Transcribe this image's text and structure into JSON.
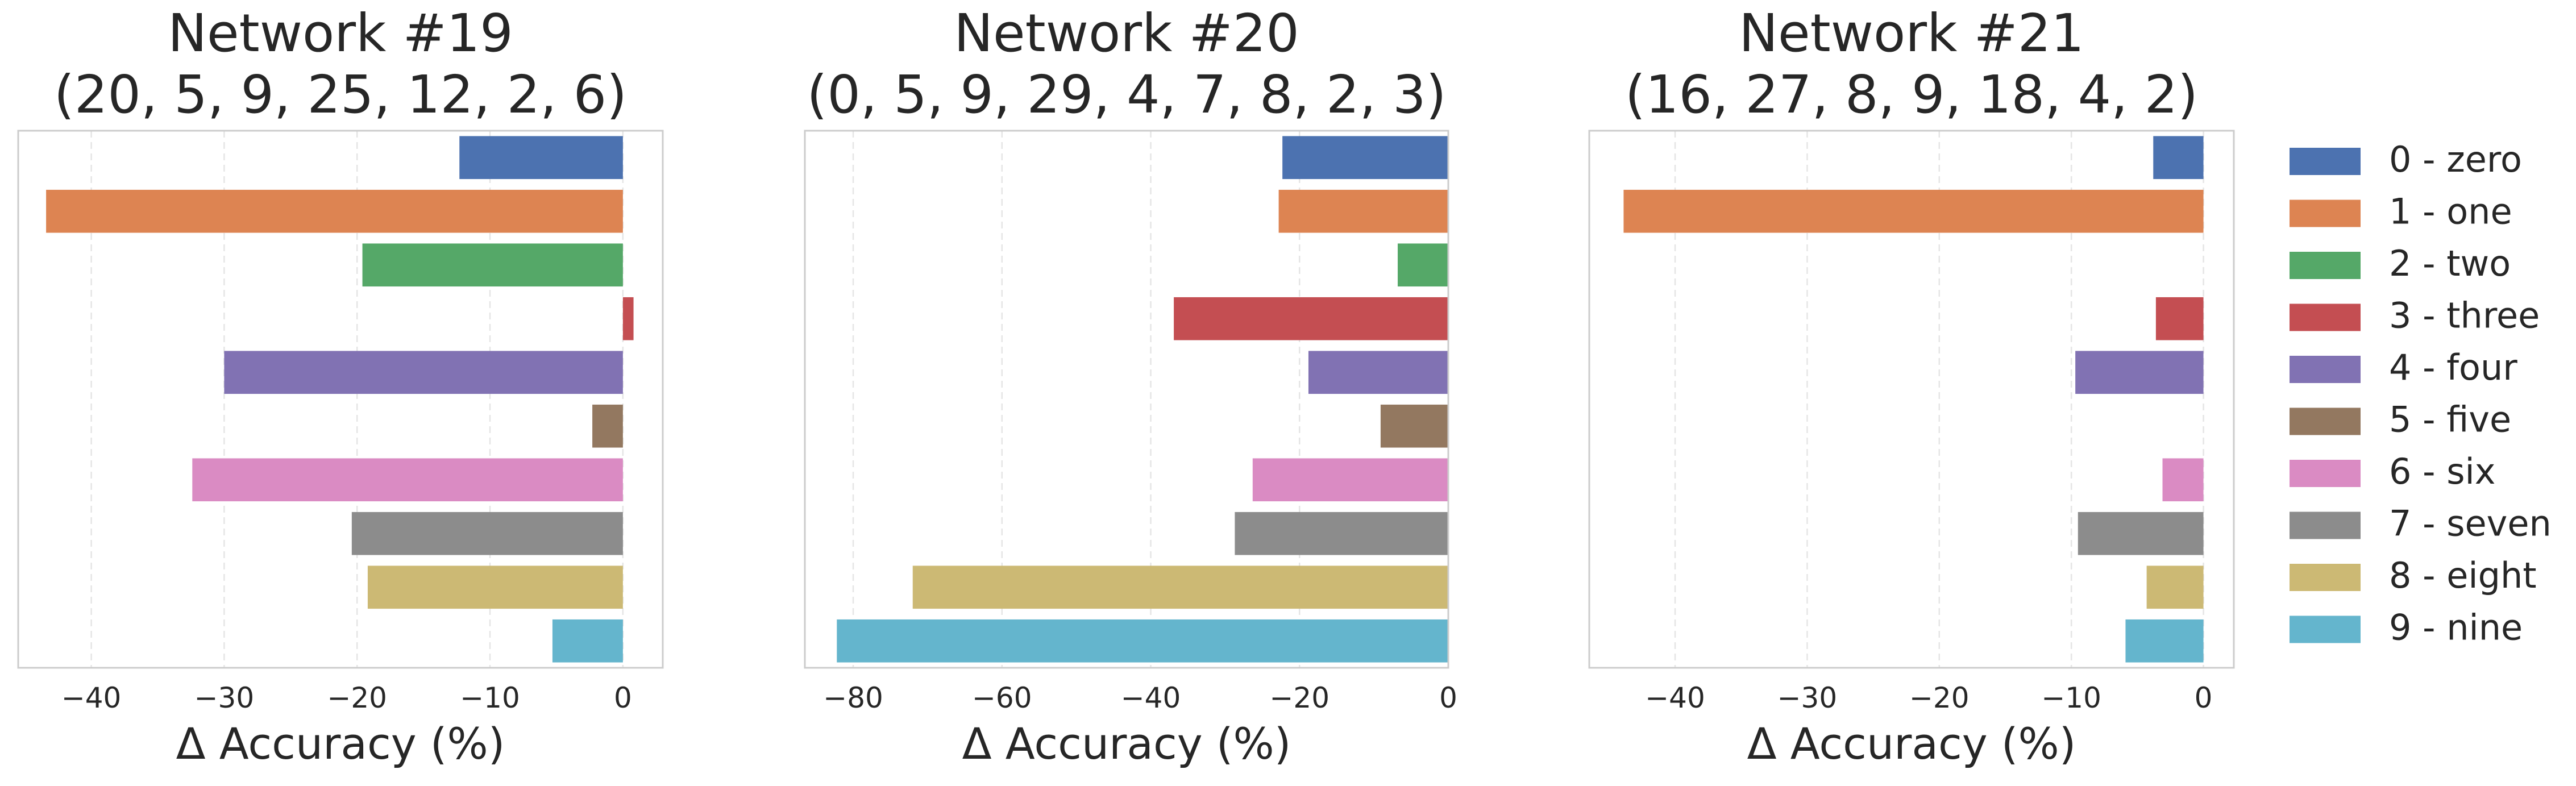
{
  "chart_data": [
    {
      "type": "bar",
      "orientation": "horizontal",
      "title": "Network #19\n(20, 5, 9, 25, 12, 2, 6)",
      "xlabel": "Δ Accuracy (%)",
      "ylabel": "",
      "xlim": [
        -45.5,
        3.0
      ],
      "xticks": [
        -40,
        -30,
        -20,
        -10,
        0
      ],
      "xtick_labels": [
        "−40",
        "−30",
        "−20",
        "−10",
        "0"
      ],
      "categories": [
        "0 - zero",
        "1 - one",
        "2 - two",
        "3 - three",
        "4 - four",
        "5 - five",
        "6 - six",
        "7 - seven",
        "8 - eight",
        "9 - nine"
      ],
      "values": [
        -12.3,
        -43.4,
        -19.6,
        0.8,
        -30.0,
        -2.3,
        -32.4,
        -20.4,
        -19.2,
        -5.3
      ],
      "grid": "x"
    },
    {
      "type": "bar",
      "orientation": "horizontal",
      "title": "Network #20\n(0, 5, 9, 29, 4, 7, 8, 2, 3)",
      "xlabel": "Δ Accuracy (%)",
      "ylabel": "",
      "xlim": [
        -86.5,
        0.0
      ],
      "xticks": [
        -80,
        -60,
        -40,
        -20,
        0
      ],
      "xtick_labels": [
        "−80",
        "−60",
        "−40",
        "−20",
        "0"
      ],
      "categories": [
        "0 - zero",
        "1 - one",
        "2 - two",
        "3 - three",
        "4 - four",
        "5 - five",
        "6 - six",
        "7 - seven",
        "8 - eight",
        "9 - nine"
      ],
      "values": [
        -22.3,
        -22.8,
        -6.8,
        -36.9,
        -18.8,
        -9.1,
        -26.3,
        -28.7,
        -72.0,
        -82.2
      ],
      "grid": "x"
    },
    {
      "type": "bar",
      "orientation": "horizontal",
      "title": "Network #21\n(16, 27, 8, 9, 18, 4, 2)",
      "xlabel": "Δ Accuracy (%)",
      "ylabel": "",
      "xlim": [
        -46.5,
        2.3
      ],
      "xticks": [
        -40,
        -30,
        -20,
        -10,
        0
      ],
      "xtick_labels": [
        "−40",
        "−30",
        "−20",
        "−10",
        "0"
      ],
      "categories": [
        "0 - zero",
        "1 - one",
        "2 - two",
        "3 - three",
        "4 - four",
        "5 - five",
        "6 - six",
        "7 - seven",
        "8 - eight",
        "9 - nine"
      ],
      "values": [
        -3.8,
        -43.9,
        0,
        -3.6,
        -9.7,
        0,
        -3.1,
        -9.5,
        -4.3,
        -5.9
      ],
      "grid": "x"
    }
  ],
  "legend": {
    "placement": "right",
    "items": [
      {
        "label": "0 - zero",
        "color": "#4c72b0"
      },
      {
        "label": "1 - one",
        "color": "#dd8452"
      },
      {
        "label": "2 - two",
        "color": "#55a868"
      },
      {
        "label": "3 - three",
        "color": "#c44e52"
      },
      {
        "label": "4 - four",
        "color": "#8172b3"
      },
      {
        "label": "5 - five",
        "color": "#937860"
      },
      {
        "label": "6 - six",
        "color": "#da8bc3"
      },
      {
        "label": "7 - seven",
        "color": "#8c8c8c"
      },
      {
        "label": "8 - eight",
        "color": "#ccb974"
      },
      {
        "label": "9 - nine",
        "color": "#64b5cd"
      }
    ]
  }
}
